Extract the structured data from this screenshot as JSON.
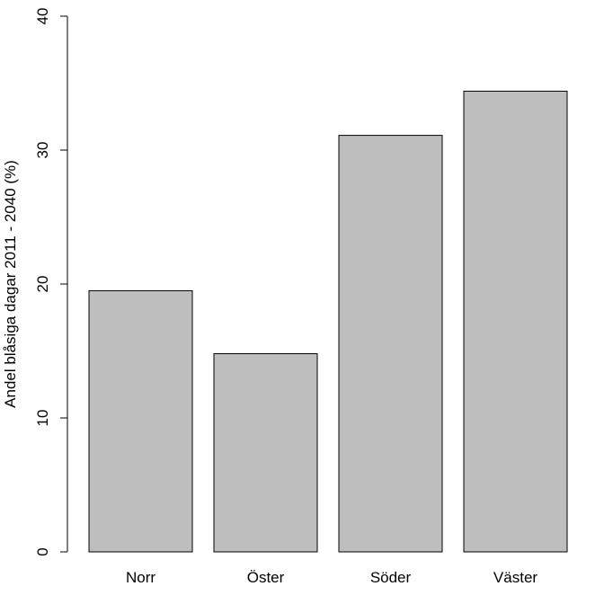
{
  "chart_data": {
    "type": "bar",
    "categories": [
      "Norr",
      "Öster",
      "Söder",
      "Väster"
    ],
    "values": [
      19.5,
      14.8,
      31.1,
      34.4
    ],
    "title": "",
    "xlabel": "",
    "ylabel": "Andel blåsiga dagar 2011 - 2040 (%)",
    "ylim": [
      0,
      40
    ],
    "yticks": [
      0,
      10,
      20,
      30,
      40
    ],
    "grid": false,
    "bar_color": "#bebebe",
    "bar_border_color": "#000000"
  }
}
